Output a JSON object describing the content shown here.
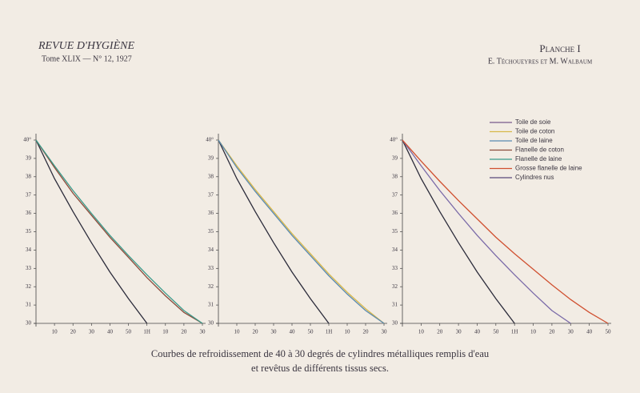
{
  "header": {
    "journal": "REVUE D'HYGIÈNE",
    "issue": "Tome XLIX — N° 12, 1927",
    "plate": "Planche I",
    "authors": "E. Téchoueyres et M. Walbaum"
  },
  "caption": [
    "Courbes de refroidissement de 40 à 30 degrés de cylindres métalliques remplis d'eau",
    "et revêtus de différents tissus secs."
  ],
  "chart_data": [
    {
      "type": "line",
      "x": [
        0,
        10,
        20,
        30,
        40,
        50,
        60,
        70,
        80,
        90
      ],
      "xlim": [
        0,
        90
      ],
      "ylim": [
        30,
        40
      ],
      "xticks": [
        10,
        20,
        30,
        40,
        50,
        {
          "value": 60,
          "label": "1H"
        },
        {
          "value": 70,
          "label": "10"
        },
        {
          "value": 80,
          "label": "20"
        },
        {
          "value": 90,
          "label": "30"
        }
      ],
      "yticks": [
        30,
        31,
        32,
        33,
        34,
        35,
        36,
        37,
        38,
        39,
        {
          "value": 40,
          "label": "40°"
        }
      ],
      "series": [
        {
          "color": "#2b2b3a",
          "values": [
            40,
            37.9,
            36.1,
            34.4,
            32.8,
            31.35,
            30,
            null,
            null,
            null
          ]
        },
        {
          "color": "#8a4a3a",
          "values": [
            40,
            38.5,
            37.1,
            35.9,
            34.7,
            33.6,
            32.5,
            31.5,
            30.6,
            30
          ]
        },
        {
          "color": "#3a9a8a",
          "values": [
            40,
            38.6,
            37.25,
            36,
            34.8,
            33.7,
            32.65,
            31.65,
            30.7,
            30
          ]
        }
      ]
    },
    {
      "type": "line",
      "x": [
        0,
        10,
        20,
        30,
        40,
        50,
        60,
        70,
        80,
        90
      ],
      "xlim": [
        0,
        90
      ],
      "ylim": [
        30,
        40
      ],
      "xticks": [
        10,
        20,
        30,
        40,
        50,
        {
          "value": 60,
          "label": "1H"
        },
        {
          "value": 70,
          "label": "10"
        },
        {
          "value": 80,
          "label": "20"
        },
        {
          "value": 90,
          "label": "30"
        }
      ],
      "yticks": [
        30,
        31,
        32,
        33,
        34,
        35,
        36,
        37,
        38,
        39,
        {
          "value": 40,
          "label": "40°"
        }
      ],
      "series": [
        {
          "color": "#2b2b3a",
          "values": [
            40,
            37.9,
            36.1,
            34.4,
            32.8,
            31.35,
            30,
            null,
            null,
            null
          ]
        },
        {
          "color": "#d8b84a",
          "values": [
            40,
            38.6,
            37.3,
            36.1,
            34.9,
            33.8,
            32.7,
            31.7,
            30.8,
            30
          ]
        },
        {
          "color": "#5a8ab0",
          "values": [
            40,
            38.5,
            37.2,
            36,
            34.8,
            33.7,
            32.6,
            31.6,
            30.7,
            30
          ]
        }
      ]
    },
    {
      "type": "line",
      "x": [
        0,
        10,
        20,
        30,
        40,
        50,
        60,
        70,
        80,
        90,
        100,
        110
      ],
      "xlim": [
        0,
        110
      ],
      "ylim": [
        30,
        40
      ],
      "xticks": [
        10,
        20,
        30,
        40,
        50,
        {
          "value": 60,
          "label": "1H"
        },
        {
          "value": 70,
          "label": "10"
        },
        {
          "value": 80,
          "label": "20"
        },
        {
          "value": 90,
          "label": "30"
        },
        {
          "value": 100,
          "label": "40"
        },
        {
          "value": 110,
          "label": "50"
        }
      ],
      "yticks": [
        30,
        31,
        32,
        33,
        34,
        35,
        36,
        37,
        38,
        39,
        {
          "value": 40,
          "label": "40°"
        }
      ],
      "series": [
        {
          "color": "#2b2b3a",
          "values": [
            40,
            37.9,
            36.1,
            34.4,
            32.8,
            31.35,
            30,
            null,
            null,
            null,
            null,
            null
          ]
        },
        {
          "color": "#7a6aa8",
          "values": [
            40,
            38.6,
            37.25,
            36,
            34.8,
            33.7,
            32.65,
            31.65,
            30.7,
            30,
            null,
            null
          ]
        },
        {
          "color": "#d05030",
          "values": [
            40,
            38.85,
            37.75,
            36.7,
            35.7,
            34.7,
            33.8,
            32.95,
            32.1,
            31.3,
            30.6,
            30
          ]
        }
      ],
      "legend": [
        {
          "name": "Toile de soie",
          "color": "#7a5a8c"
        },
        {
          "name": "Toile de coton",
          "color": "#d8b84a"
        },
        {
          "name": "Toile de laine",
          "color": "#5a8ab0"
        },
        {
          "name": "Flanelle de coton",
          "color": "#8a4a3a"
        },
        {
          "name": "Flanelle de laine",
          "color": "#3a9a8a"
        },
        {
          "name": "Grosse flanelle de laine",
          "color": "#d05030"
        },
        {
          "name": "Cylindres nus",
          "color": "#5a4a7a"
        }
      ]
    }
  ]
}
